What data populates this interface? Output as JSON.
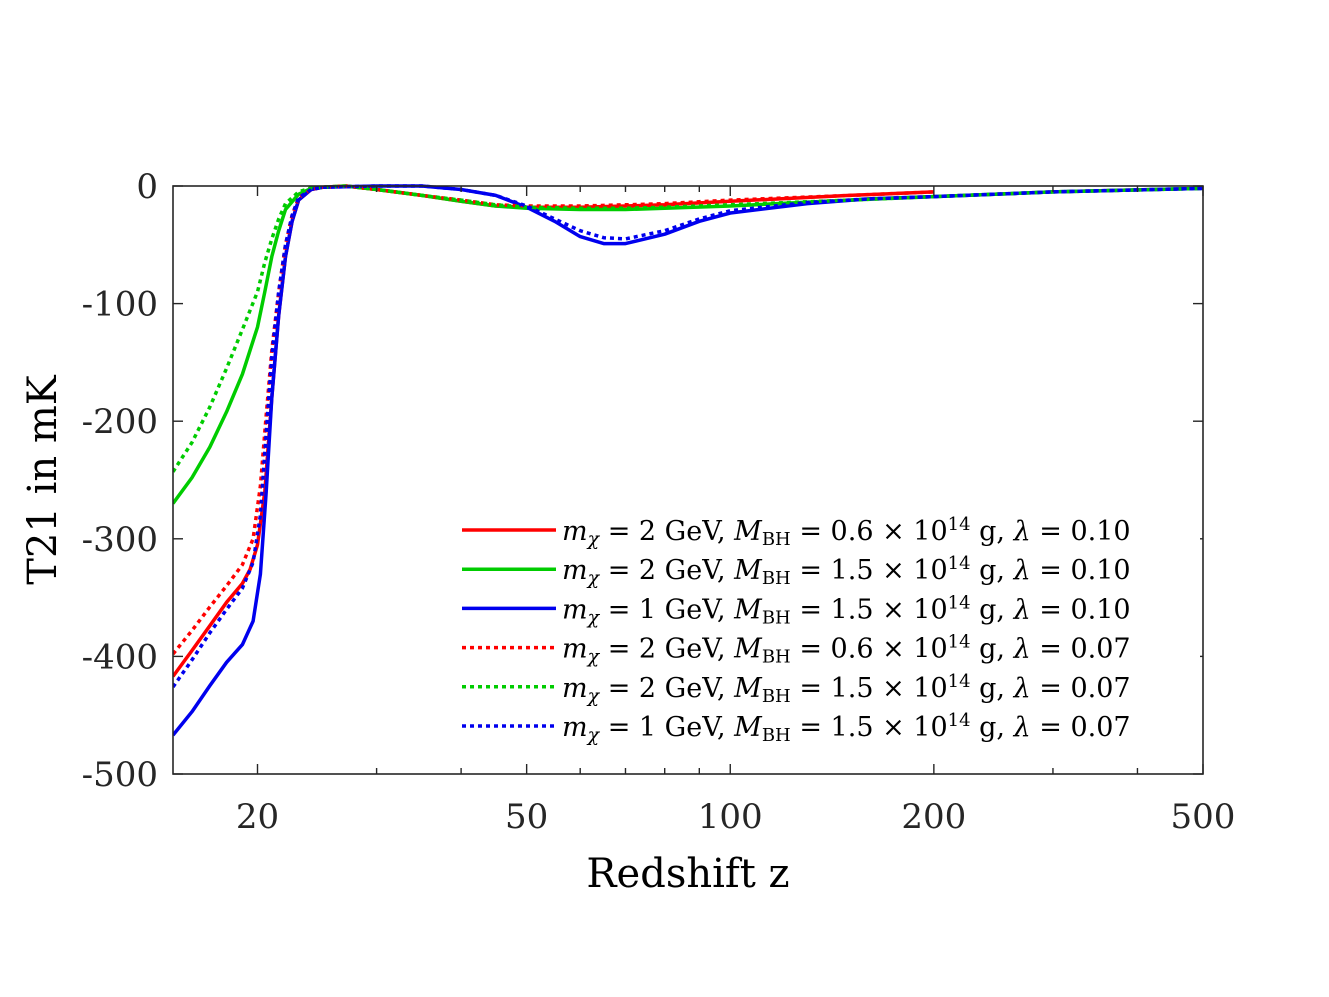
{
  "chart_data": {
    "type": "line",
    "title": "",
    "xlabel": "Redshift z",
    "ylabel": "T21 in mK",
    "xscale": "log",
    "xlim": [
      15,
      500
    ],
    "ylim": [
      -500,
      0
    ],
    "grid": false,
    "legend_position": "bottom-right",
    "x_ticks": [
      20,
      50,
      100,
      200,
      500
    ],
    "x_tick_labels": [
      "20",
      "50",
      "100",
      "200",
      "500"
    ],
    "y_ticks": [
      0,
      -100,
      -200,
      -300,
      -400,
      -500
    ],
    "y_tick_labels": [
      "0",
      "-100",
      "-200",
      "-300",
      "-400",
      "-500"
    ],
    "series": [
      {
        "name": "mχ = 2 GeV, MBH = 0.6 × 10^14 g, λ = 0.10",
        "legend": {
          "m": "2",
          "mbh": "0.6",
          "lambda": "0.10"
        },
        "color": "#ff0000",
        "style": "solid",
        "points": [
          [
            15,
            -417
          ],
          [
            16,
            -395
          ],
          [
            17,
            -374
          ],
          [
            18,
            -354
          ],
          [
            19,
            -338
          ],
          [
            19.5,
            -326
          ],
          [
            20,
            -305
          ],
          [
            20.5,
            -260
          ],
          [
            21,
            -180
          ],
          [
            21.5,
            -110
          ],
          [
            22,
            -60
          ],
          [
            22.5,
            -30
          ],
          [
            23,
            -12
          ],
          [
            24,
            -3
          ],
          [
            25,
            -1
          ],
          [
            27,
            0
          ],
          [
            30,
            -3
          ],
          [
            35,
            -8
          ],
          [
            40,
            -13
          ],
          [
            45,
            -17
          ],
          [
            50,
            -18
          ],
          [
            60,
            -18
          ],
          [
            70,
            -17
          ],
          [
            80,
            -16
          ],
          [
            100,
            -13
          ],
          [
            150,
            -8
          ],
          [
            200,
            -5
          ]
        ]
      },
      {
        "name": "mχ = 2 GeV, MBH = 1.5 × 10^14 g, λ = 0.10",
        "legend": {
          "m": "2",
          "mbh": "1.5",
          "lambda": "0.10"
        },
        "color": "#00cc00",
        "style": "solid",
        "points": [
          [
            15,
            -270
          ],
          [
            16,
            -248
          ],
          [
            17,
            -222
          ],
          [
            18,
            -192
          ],
          [
            19,
            -160
          ],
          [
            20,
            -120
          ],
          [
            20.5,
            -90
          ],
          [
            21,
            -60
          ],
          [
            21.5,
            -38
          ],
          [
            22,
            -20
          ],
          [
            23,
            -7
          ],
          [
            24,
            -2
          ],
          [
            25,
            -1
          ],
          [
            27,
            0
          ],
          [
            30,
            -3
          ],
          [
            35,
            -8
          ],
          [
            40,
            -13
          ],
          [
            45,
            -17
          ],
          [
            50,
            -19
          ],
          [
            60,
            -20
          ],
          [
            70,
            -20
          ],
          [
            80,
            -19
          ],
          [
            100,
            -17
          ],
          [
            150,
            -12
          ],
          [
            200,
            -9
          ],
          [
            300,
            -5
          ],
          [
            500,
            -2
          ]
        ]
      },
      {
        "name": "mχ = 1 GeV, MBH = 1.5 × 10^14 g, λ = 0.10",
        "legend": {
          "m": "1",
          "mbh": "1.5",
          "lambda": "0.10"
        },
        "color": "#0000ee",
        "style": "solid",
        "points": [
          [
            15,
            -467
          ],
          [
            16,
            -447
          ],
          [
            17,
            -425
          ],
          [
            18,
            -405
          ],
          [
            19,
            -390
          ],
          [
            19.7,
            -370
          ],
          [
            20.2,
            -330
          ],
          [
            20.6,
            -260
          ],
          [
            21,
            -180
          ],
          [
            21.5,
            -110
          ],
          [
            22,
            -60
          ],
          [
            22.5,
            -30
          ],
          [
            23,
            -12
          ],
          [
            24,
            -3
          ],
          [
            25,
            -1
          ],
          [
            30,
            0
          ],
          [
            35,
            0
          ],
          [
            40,
            -3
          ],
          [
            45,
            -8
          ],
          [
            50,
            -18
          ],
          [
            55,
            -30
          ],
          [
            60,
            -43
          ],
          [
            65,
            -49
          ],
          [
            70,
            -49
          ],
          [
            80,
            -41
          ],
          [
            90,
            -30
          ],
          [
            100,
            -23
          ],
          [
            130,
            -15
          ],
          [
            160,
            -11
          ],
          [
            200,
            -9
          ],
          [
            300,
            -5
          ],
          [
            500,
            -2
          ]
        ]
      },
      {
        "name": "mχ = 2 GeV, MBH = 0.6 × 10^14 g, λ = 0.07",
        "legend": {
          "m": "2",
          "mbh": "0.6",
          "lambda": "0.07"
        },
        "color": "#ff0000",
        "style": "dotted",
        "points": [
          [
            15,
            -398
          ],
          [
            16,
            -378
          ],
          [
            17,
            -358
          ],
          [
            18,
            -340
          ],
          [
            19,
            -322
          ],
          [
            19.7,
            -300
          ],
          [
            20.2,
            -255
          ],
          [
            20.6,
            -195
          ],
          [
            21,
            -140
          ],
          [
            21.5,
            -90
          ],
          [
            22,
            -50
          ],
          [
            22.5,
            -25
          ],
          [
            23,
            -10
          ],
          [
            24,
            -3
          ],
          [
            25,
            -1
          ],
          [
            27,
            0
          ],
          [
            30,
            -3
          ],
          [
            35,
            -8
          ],
          [
            40,
            -12
          ],
          [
            45,
            -16
          ],
          [
            50,
            -17
          ],
          [
            60,
            -17
          ],
          [
            70,
            -16
          ],
          [
            80,
            -15
          ],
          [
            100,
            -12
          ],
          [
            150,
            -8
          ],
          [
            200,
            -5
          ]
        ]
      },
      {
        "name": "mχ = 2 GeV, MBH = 1.5 × 10^14 g, λ = 0.07",
        "legend": {
          "m": "2",
          "mbh": "1.5",
          "lambda": "0.07"
        },
        "color": "#00cc00",
        "style": "dotted",
        "points": [
          [
            15,
            -243
          ],
          [
            16,
            -218
          ],
          [
            17,
            -188
          ],
          [
            18,
            -155
          ],
          [
            19,
            -122
          ],
          [
            20,
            -90
          ],
          [
            20.5,
            -65
          ],
          [
            21,
            -45
          ],
          [
            21.5,
            -28
          ],
          [
            22,
            -15
          ],
          [
            23,
            -5
          ],
          [
            24,
            -1.5
          ],
          [
            25,
            -1
          ],
          [
            27,
            0
          ],
          [
            30,
            -3
          ],
          [
            35,
            -8
          ],
          [
            40,
            -12
          ],
          [
            45,
            -16
          ],
          [
            50,
            -18
          ],
          [
            60,
            -19
          ],
          [
            70,
            -19
          ],
          [
            80,
            -18
          ],
          [
            100,
            -16
          ],
          [
            150,
            -12
          ],
          [
            200,
            -9
          ],
          [
            300,
            -5
          ],
          [
            500,
            -2
          ]
        ]
      },
      {
        "name": "mχ = 1 GeV, MBH = 1.5 × 10^14 g, λ = 0.07",
        "legend": {
          "m": "1",
          "mbh": "1.5",
          "lambda": "0.07"
        },
        "color": "#0000ee",
        "style": "dotted",
        "points": [
          [
            15,
            -426
          ],
          [
            16,
            -403
          ],
          [
            17,
            -380
          ],
          [
            18,
            -360
          ],
          [
            19,
            -342
          ],
          [
            19.7,
            -320
          ],
          [
            20.2,
            -280
          ],
          [
            20.6,
            -210
          ],
          [
            21,
            -145
          ],
          [
            21.5,
            -90
          ],
          [
            22,
            -50
          ],
          [
            22.5,
            -25
          ],
          [
            23,
            -10
          ],
          [
            24,
            -3
          ],
          [
            25,
            -1
          ],
          [
            30,
            0
          ],
          [
            35,
            0
          ],
          [
            40,
            -3
          ],
          [
            45,
            -8
          ],
          [
            50,
            -17
          ],
          [
            55,
            -28
          ],
          [
            60,
            -38
          ],
          [
            65,
            -44
          ],
          [
            70,
            -45
          ],
          [
            80,
            -38
          ],
          [
            90,
            -28
          ],
          [
            100,
            -21
          ],
          [
            130,
            -14
          ],
          [
            160,
            -11
          ],
          [
            200,
            -9
          ],
          [
            300,
            -5
          ],
          [
            500,
            -2
          ]
        ]
      }
    ]
  }
}
